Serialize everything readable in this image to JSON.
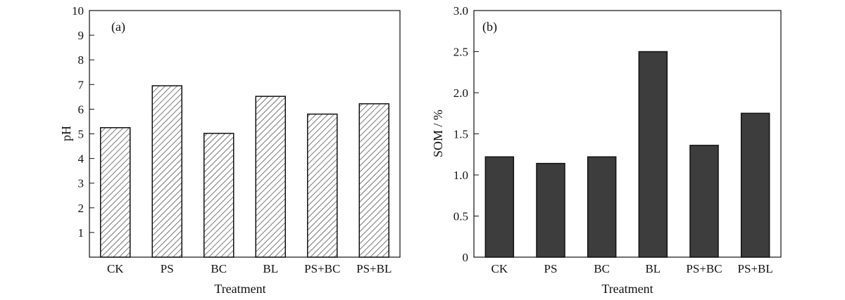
{
  "chart_data": [
    {
      "type": "bar",
      "panel_label": "(a)",
      "categories": [
        "CK",
        "PS",
        "BC",
        "BL",
        "PS+BC",
        "PS+BL"
      ],
      "values": [
        5.25,
        6.95,
        5.02,
        6.52,
        5.8,
        6.22
      ],
      "xlabel": "Treatment",
      "ylabel": "pH",
      "ylim": [
        0,
        10
      ],
      "yticks": [
        "1",
        "2",
        "3",
        "4",
        "5",
        "6",
        "7",
        "8",
        "9",
        "10"
      ],
      "bar_style": "diagonal-hatch",
      "grid": false
    },
    {
      "type": "bar",
      "panel_label": "(b)",
      "categories": [
        "CK",
        "PS",
        "BC",
        "BL",
        "PS+BC",
        "PS+BL"
      ],
      "values": [
        1.22,
        1.14,
        1.22,
        2.5,
        1.36,
        1.75
      ],
      "xlabel": "Treatment",
      "ylabel": "SOM / %",
      "ylim": [
        0,
        3.0
      ],
      "yticks": [
        "0",
        "0.5",
        "1.0",
        "1.5",
        "2.0",
        "2.5",
        "3.0"
      ],
      "bar_style": "solid",
      "bar_color": "#3d3d3d",
      "grid": false
    }
  ]
}
